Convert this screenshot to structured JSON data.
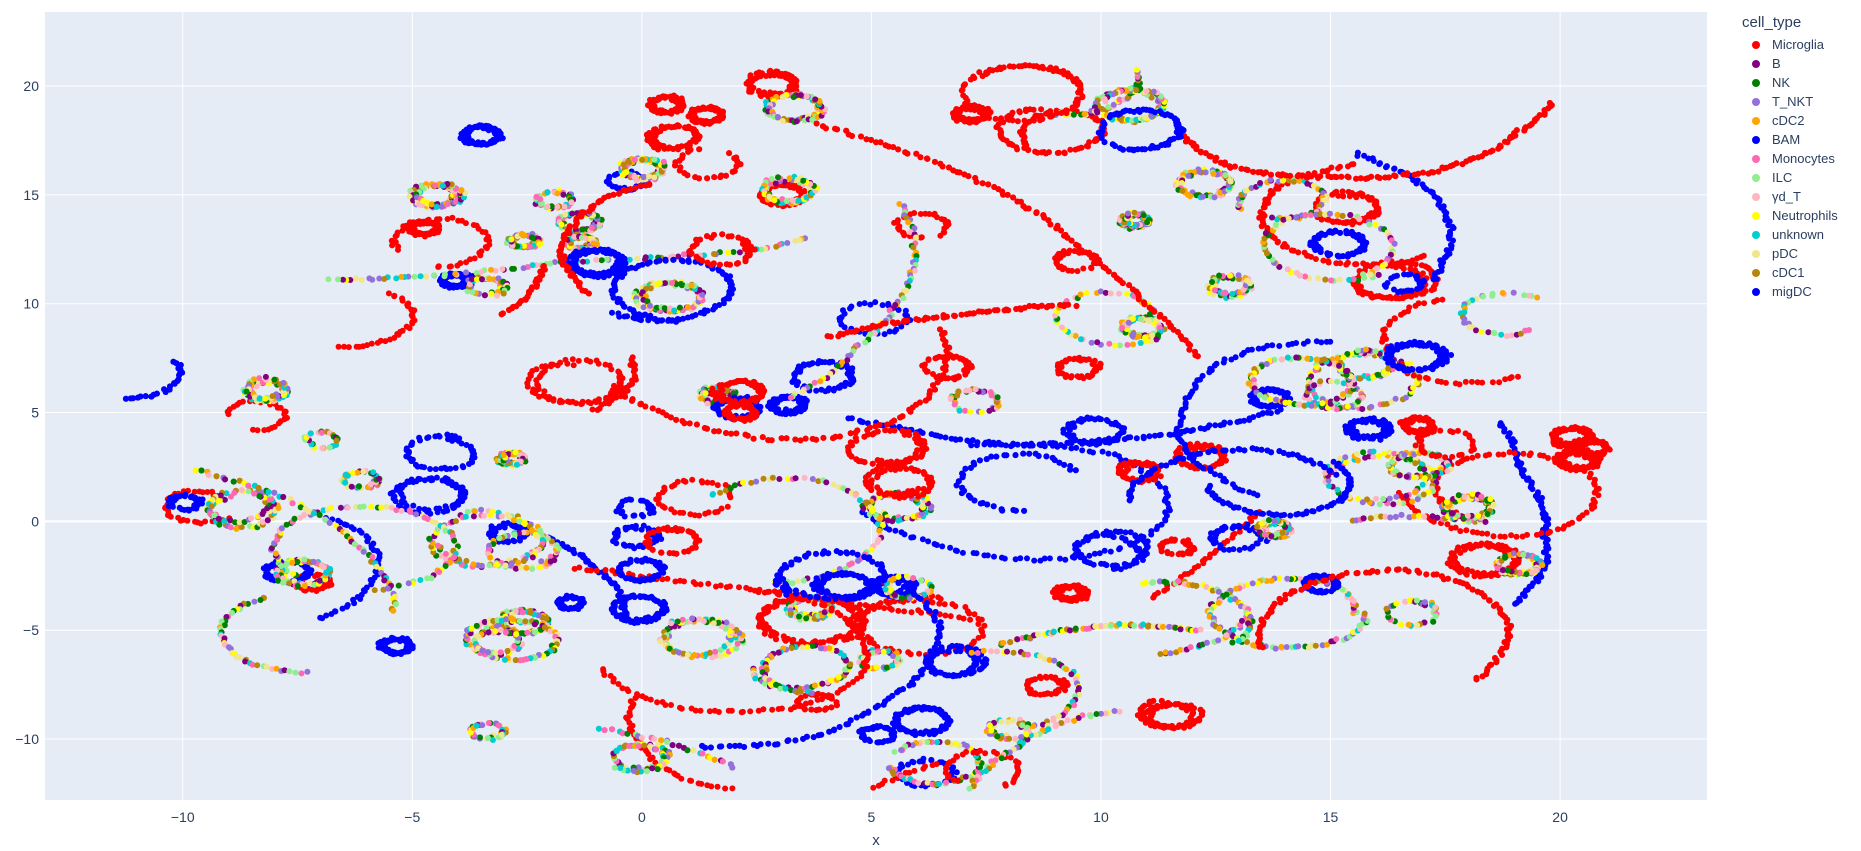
{
  "chart_data": {
    "type": "scatter",
    "xlabel": "x",
    "ylabel": "",
    "xlim": [
      -13,
      23.2
    ],
    "ylim": [
      -12.8,
      23.4
    ],
    "xticks": [
      -10,
      -5,
      0,
      5,
      10,
      15,
      20
    ],
    "yticks": [
      -10,
      -5,
      0,
      5,
      10,
      15,
      20
    ],
    "grid": true,
    "legend_title": "cell_type",
    "legend_position": "right",
    "series": [
      {
        "name": "Microglia",
        "color": "#ff0000"
      },
      {
        "name": "B",
        "color": "#800080"
      },
      {
        "name": "NK",
        "color": "#008000"
      },
      {
        "name": "T_NKT",
        "color": "#9370db"
      },
      {
        "name": "cDC2",
        "color": "#ffa500"
      },
      {
        "name": "BAM",
        "color": "#0000ff"
      },
      {
        "name": "Monocytes",
        "color": "#ff69b4"
      },
      {
        "name": "ILC",
        "color": "#90ee90"
      },
      {
        "name": "γd_T",
        "color": "#ffb6c1"
      },
      {
        "name": "Neutrophils",
        "color": "#ffff00"
      },
      {
        "name": "unknown",
        "color": "#00ced1"
      },
      {
        "name": "pDC",
        "color": "#f0e68c"
      },
      {
        "name": "cDC1",
        "color": "#b8860b"
      },
      {
        "name": "migDC",
        "color": "#0000ff"
      }
    ]
  }
}
